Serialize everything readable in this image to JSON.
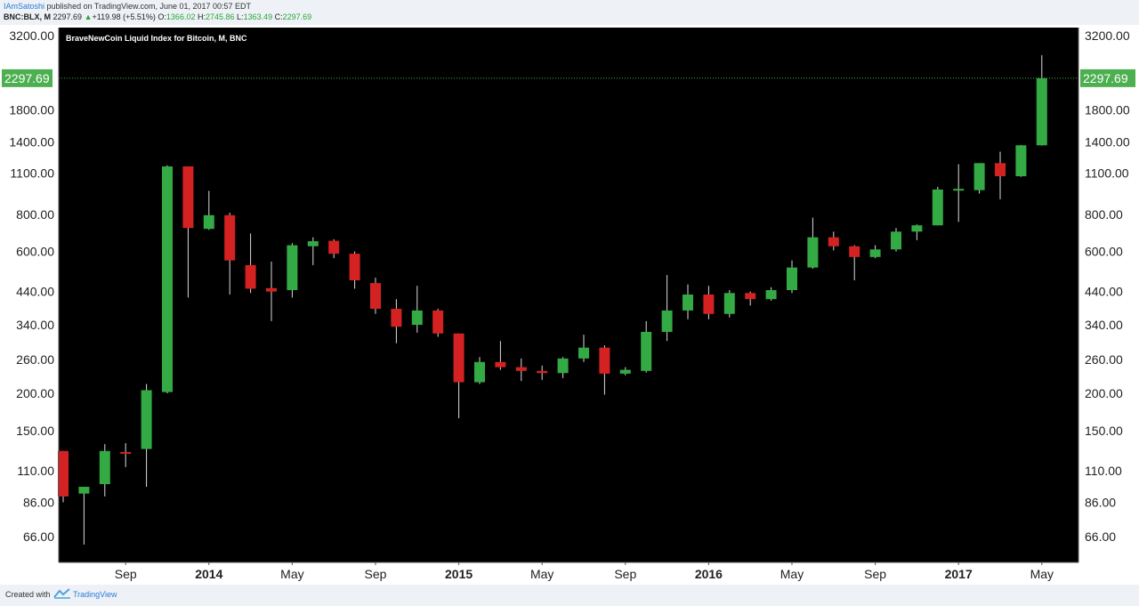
{
  "header": {
    "author": "IAmSatoshi",
    "published": "published on TradingView.com, June 01, 2017 00:57 EDT",
    "symbol": "BNC:BLX, M",
    "last": "2297.69",
    "change": "+119.98 (+5.51%)",
    "open_label": "O:",
    "open": "1366.02",
    "high_label": "H:",
    "high": "2745.86",
    "low_label": "L:",
    "low": "1363.49",
    "close_label": "C:",
    "close": "2297.69"
  },
  "footer": {
    "created": "Created with",
    "brand": "TradingView"
  },
  "colors": {
    "up": "#33aa44",
    "down": "#d42222",
    "background": "#000000",
    "price_line": "#4caf50"
  },
  "chart_data": {
    "type": "candlestick",
    "title": "BraveNewCoin Liquid Index for Bitcoin, M, BNC",
    "scale": "log",
    "ylim": [
      54,
      3400
    ],
    "y_ticks": [
      "66.00",
      "86.00",
      "110.00",
      "150.00",
      "200.00",
      "260.00",
      "340.00",
      "440.00",
      "600.00",
      "800.00",
      "1100.00",
      "1400.00",
      "1800.00",
      "3200.00"
    ],
    "x_ticks": [
      {
        "label": "Sep",
        "index": 3,
        "bold": false
      },
      {
        "label": "2014",
        "index": 7,
        "bold": true
      },
      {
        "label": "May",
        "index": 11,
        "bold": false
      },
      {
        "label": "Sep",
        "index": 15,
        "bold": false
      },
      {
        "label": "2015",
        "index": 19,
        "bold": true
      },
      {
        "label": "May",
        "index": 23,
        "bold": false
      },
      {
        "label": "Sep",
        "index": 27,
        "bold": false
      },
      {
        "label": "2016",
        "index": 31,
        "bold": true
      },
      {
        "label": "May",
        "index": 35,
        "bold": false
      },
      {
        "label": "Sep",
        "index": 39,
        "bold": false
      },
      {
        "label": "2017",
        "index": 43,
        "bold": true
      },
      {
        "label": "May",
        "index": 47,
        "bold": false
      }
    ],
    "last_price": 2297.69,
    "last_price_label": "2297.69",
    "candles": [
      {
        "o": 128,
        "h": 128,
        "l": 86,
        "c": 90
      },
      {
        "o": 92,
        "h": 97,
        "l": 62,
        "c": 97
      },
      {
        "o": 99,
        "h": 135,
        "l": 90,
        "c": 128
      },
      {
        "o": 127,
        "h": 136,
        "l": 113,
        "c": 126
      },
      {
        "o": 130,
        "h": 215,
        "l": 97,
        "c": 205
      },
      {
        "o": 202,
        "h": 1170,
        "l": 200,
        "c": 1160
      },
      {
        "o": 1160,
        "h": 1160,
        "l": 420,
        "c": 720
      },
      {
        "o": 715,
        "h": 960,
        "l": 710,
        "c": 795
      },
      {
        "o": 795,
        "h": 810,
        "l": 430,
        "c": 560
      },
      {
        "o": 540,
        "h": 690,
        "l": 435,
        "c": 450
      },
      {
        "o": 452,
        "h": 555,
        "l": 350,
        "c": 440
      },
      {
        "o": 445,
        "h": 640,
        "l": 420,
        "c": 630
      },
      {
        "o": 625,
        "h": 670,
        "l": 540,
        "c": 650
      },
      {
        "o": 652,
        "h": 660,
        "l": 570,
        "c": 590
      },
      {
        "o": 590,
        "h": 600,
        "l": 450,
        "c": 480
      },
      {
        "o": 470,
        "h": 490,
        "l": 370,
        "c": 385
      },
      {
        "o": 385,
        "h": 415,
        "l": 295,
        "c": 335
      },
      {
        "o": 340,
        "h": 460,
        "l": 320,
        "c": 380
      },
      {
        "o": 380,
        "h": 385,
        "l": 310,
        "c": 318
      },
      {
        "o": 318,
        "h": 318,
        "l": 165,
        "c": 218
      },
      {
        "o": 218,
        "h": 265,
        "l": 215,
        "c": 255
      },
      {
        "o": 255,
        "h": 300,
        "l": 240,
        "c": 245
      },
      {
        "o": 245,
        "h": 262,
        "l": 220,
        "c": 238
      },
      {
        "o": 238,
        "h": 248,
        "l": 222,
        "c": 234
      },
      {
        "o": 234,
        "h": 265,
        "l": 225,
        "c": 262
      },
      {
        "o": 262,
        "h": 315,
        "l": 255,
        "c": 285
      },
      {
        "o": 285,
        "h": 290,
        "l": 198,
        "c": 233
      },
      {
        "o": 233,
        "h": 245,
        "l": 230,
        "c": 240
      },
      {
        "o": 238,
        "h": 350,
        "l": 235,
        "c": 322
      },
      {
        "o": 322,
        "h": 500,
        "l": 300,
        "c": 380
      },
      {
        "o": 380,
        "h": 465,
        "l": 355,
        "c": 430
      },
      {
        "o": 430,
        "h": 460,
        "l": 355,
        "c": 370
      },
      {
        "o": 370,
        "h": 445,
        "l": 360,
        "c": 435
      },
      {
        "o": 435,
        "h": 440,
        "l": 395,
        "c": 415
      },
      {
        "o": 415,
        "h": 455,
        "l": 410,
        "c": 445
      },
      {
        "o": 445,
        "h": 560,
        "l": 435,
        "c": 530
      },
      {
        "o": 530,
        "h": 780,
        "l": 525,
        "c": 670
      },
      {
        "o": 670,
        "h": 700,
        "l": 605,
        "c": 625
      },
      {
        "o": 625,
        "h": 630,
        "l": 480,
        "c": 575
      },
      {
        "o": 575,
        "h": 630,
        "l": 570,
        "c": 610
      },
      {
        "o": 610,
        "h": 720,
        "l": 600,
        "c": 700
      },
      {
        "o": 700,
        "h": 740,
        "l": 655,
        "c": 735
      },
      {
        "o": 735,
        "h": 990,
        "l": 735,
        "c": 970
      },
      {
        "o": 970,
        "h": 1180,
        "l": 755,
        "c": 975
      },
      {
        "o": 965,
        "h": 1190,
        "l": 940,
        "c": 1190
      },
      {
        "o": 1190,
        "h": 1300,
        "l": 900,
        "c": 1075
      },
      {
        "o": 1075,
        "h": 1370,
        "l": 1070,
        "c": 1366
      },
      {
        "o": 1366,
        "h": 2746,
        "l": 1363,
        "c": 2298
      }
    ]
  }
}
